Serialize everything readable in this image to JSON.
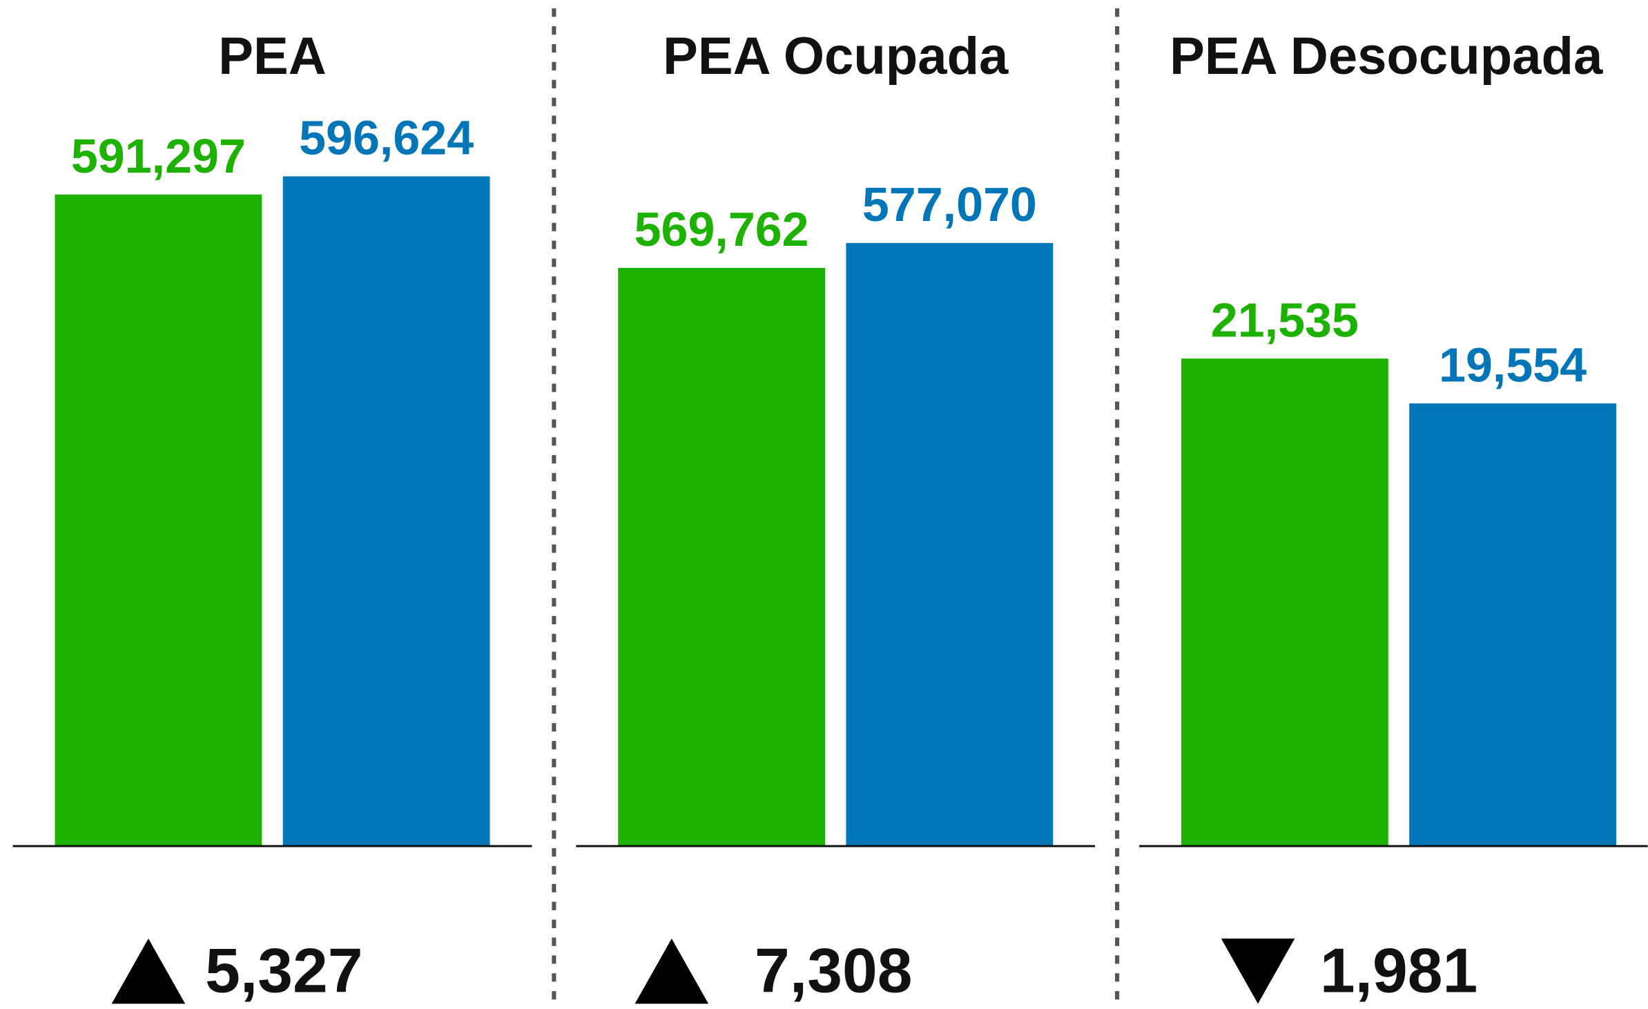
{
  "chart_data": [
    {
      "type": "bar",
      "title": "PEA",
      "values": [
        591297,
        596624
      ],
      "value_labels": [
        "591,297",
        "596,624"
      ],
      "colors": [
        "#1db100",
        "#0075b8"
      ],
      "ylim": [
        400000,
        616000
      ],
      "change": 5327,
      "change_label": "5,327"
    },
    {
      "type": "bar",
      "title": "PEA Ocupada",
      "values": [
        569762,
        577070
      ],
      "value_labels": [
        "569,762",
        "577,070"
      ],
      "colors": [
        "#1db100",
        "#0075b8"
      ],
      "ylim": [
        400000,
        616000
      ],
      "change": 7308,
      "change_label": "7,308"
    },
    {
      "type": "bar",
      "title": "PEA Desocupada",
      "values": [
        21535,
        19554
      ],
      "value_labels": [
        "21,535",
        "19,554"
      ],
      "colors": [
        "#1db100",
        "#0075b8"
      ],
      "ylim": [
        0,
        32500
      ],
      "change": -1981,
      "change_label": "1,981"
    }
  ]
}
